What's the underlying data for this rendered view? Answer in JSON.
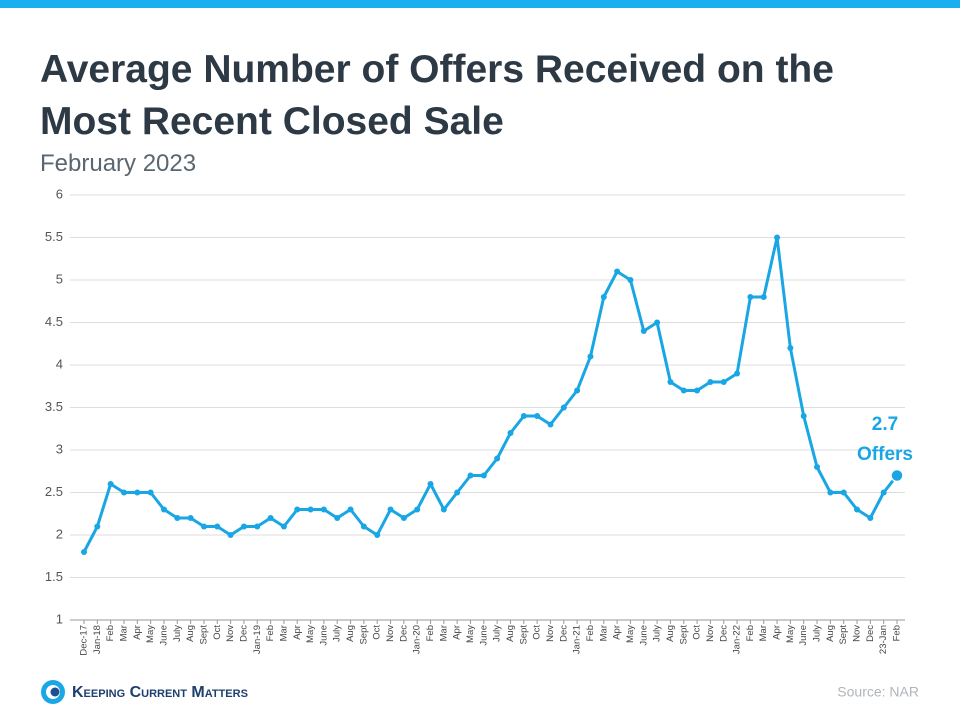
{
  "chart_data": {
    "type": "line",
    "title": "Average Number of Offers Received on the Most Recent Closed Sale",
    "subtitle": "February 2023",
    "categories": [
      "Dec-17",
      "Jan-18",
      "Feb",
      "Mar",
      "Apr",
      "May",
      "June",
      "July",
      "Aug",
      "Sept",
      "Oct",
      "Nov",
      "Dec",
      "Jan-19",
      "Feb",
      "Mar",
      "Apr",
      "May",
      "June",
      "July",
      "Aug",
      "Sept",
      "Oct",
      "Nov",
      "Dec",
      "Jan-20",
      "Feb",
      "Mar",
      "Apr",
      "May",
      "June",
      "July",
      "Aug",
      "Sept",
      "Oct",
      "Nov",
      "Dec",
      "Jan-21",
      "Feb",
      "Mar",
      "Apr",
      "May",
      "June",
      "July",
      "Aug",
      "Sept",
      "Oct",
      "Nov",
      "Dec",
      "Jan-22",
      "Feb",
      "Mar",
      "Apr",
      "May",
      "June",
      "July",
      "Aug",
      "Sept",
      "Nov",
      "Dec",
      "23-Jan",
      "Feb"
    ],
    "values": [
      1.8,
      2.1,
      2.6,
      2.5,
      2.5,
      2.5,
      2.3,
      2.2,
      2.2,
      2.1,
      2.1,
      2.0,
      2.1,
      2.1,
      2.2,
      2.1,
      2.3,
      2.3,
      2.3,
      2.2,
      2.3,
      2.1,
      2.0,
      2.3,
      2.2,
      2.3,
      2.6,
      2.3,
      2.5,
      2.7,
      2.7,
      2.9,
      3.2,
      3.4,
      3.4,
      3.3,
      3.5,
      3.7,
      4.1,
      4.8,
      5.1,
      5.0,
      4.4,
      4.5,
      3.8,
      3.7,
      3.7,
      3.8,
      3.8,
      3.9,
      4.8,
      4.8,
      5.5,
      4.2,
      3.4,
      2.8,
      2.5,
      2.5,
      2.3,
      2.2,
      2.5,
      2.7
    ],
    "color": "#19a6e4",
    "ylim": [
      1,
      6
    ],
    "yticks": [
      1,
      1.5,
      2,
      2.5,
      3,
      3.5,
      4,
      4.5,
      5,
      5.5,
      6
    ],
    "grid": true,
    "annotations": [
      "2.7",
      "Offers"
    ],
    "source": "Source: NAR"
  },
  "logo": "Keeping Current Matters"
}
